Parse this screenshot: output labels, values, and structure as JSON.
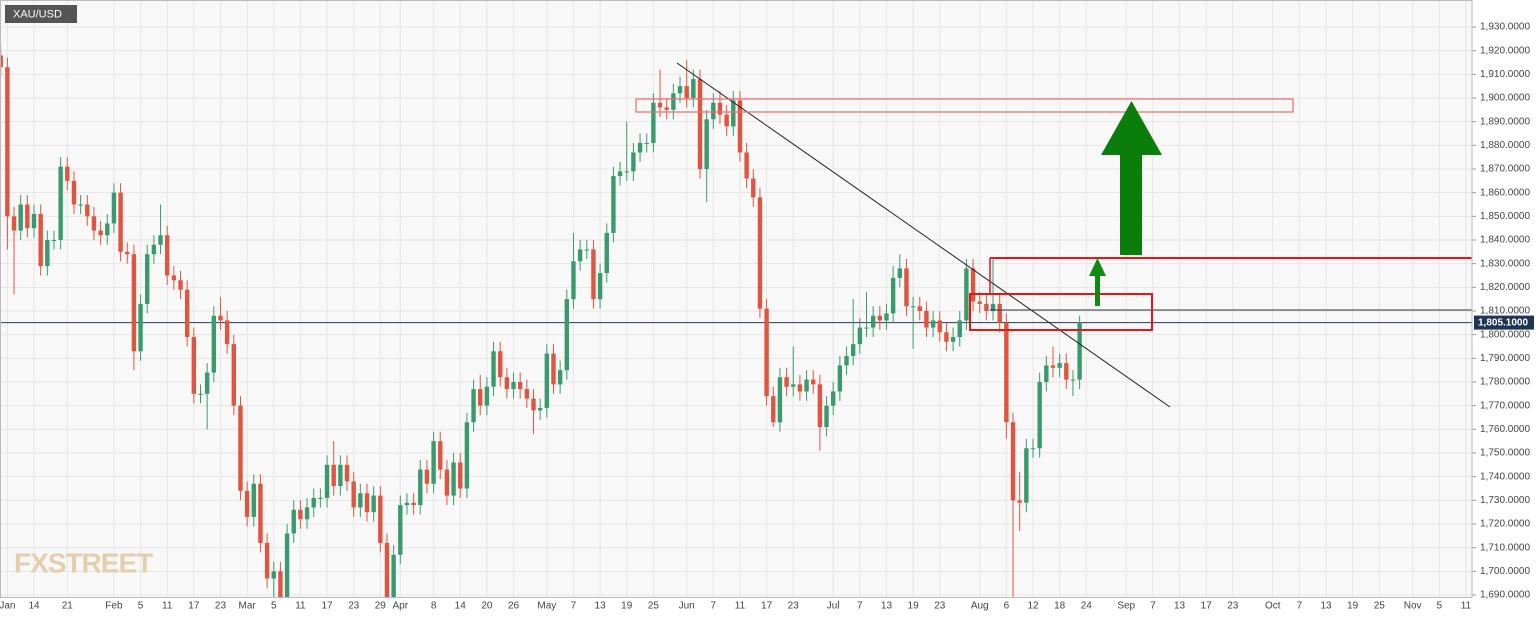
{
  "chart_data": {
    "type": "candlestick",
    "symbol": "XAU/USD",
    "watermark": "FXSTREET",
    "up_color": "#3a9a6e",
    "down_color": "#e0553f",
    "grid": true,
    "ylim": [
      1690,
      1930
    ],
    "yticks": [
      {
        "value": 1690,
        "label": "1,690.0000"
      },
      {
        "value": 1700,
        "label": "1,700.0000"
      },
      {
        "value": 1710,
        "label": "1,710.0000"
      },
      {
        "value": 1720,
        "label": "1,720.0000"
      },
      {
        "value": 1730,
        "label": "1,730.0000"
      },
      {
        "value": 1740,
        "label": "1,740.0000"
      },
      {
        "value": 1750,
        "label": "1,750.0000"
      },
      {
        "value": 1760,
        "label": "1,760.0000"
      },
      {
        "value": 1770,
        "label": "1,770.0000"
      },
      {
        "value": 1780,
        "label": "1,780.0000"
      },
      {
        "value": 1790,
        "label": "1,790.0000"
      },
      {
        "value": 1800,
        "label": "1,800.0000"
      },
      {
        "value": 1810,
        "label": "1,810.0000"
      },
      {
        "value": 1820,
        "label": "1,820.0000"
      },
      {
        "value": 1830,
        "label": "1,830.0000"
      },
      {
        "value": 1840,
        "label": "1,840.0000"
      },
      {
        "value": 1850,
        "label": "1,850.0000"
      },
      {
        "value": 1860,
        "label": "1,860.0000"
      },
      {
        "value": 1870,
        "label": "1,870.0000"
      },
      {
        "value": 1880,
        "label": "1,880.0000"
      },
      {
        "value": 1890,
        "label": "1,890.0000"
      },
      {
        "value": 1900,
        "label": "1,900.0000"
      },
      {
        "value": 1910,
        "label": "1,910.0000"
      },
      {
        "value": 1920,
        "label": "1,920.0000"
      },
      {
        "value": 1930,
        "label": "1,930.0000"
      }
    ],
    "last_price": {
      "value": 1805.1,
      "label": "1,805.1000"
    },
    "categories": [
      null,
      "Jan",
      null,
      null,
      null,
      "14",
      null,
      null,
      null,
      null,
      "21",
      null,
      null,
      null,
      null,
      null,
      null,
      "Feb",
      null,
      null,
      null,
      "5",
      null,
      null,
      null,
      "11",
      null,
      null,
      null,
      "17",
      null,
      null,
      null,
      "23",
      null,
      null,
      null,
      "Mar",
      null,
      null,
      null,
      "5",
      null,
      null,
      null,
      "11",
      null,
      null,
      null,
      "17",
      null,
      null,
      null,
      "23",
      null,
      null,
      null,
      "29",
      null,
      null,
      "Apr",
      null,
      null,
      null,
      null,
      "8",
      null,
      null,
      null,
      "14",
      null,
      null,
      null,
      "20",
      null,
      null,
      null,
      "26",
      null,
      null,
      null,
      null,
      "May",
      null,
      null,
      null,
      "7",
      null,
      null,
      null,
      "13",
      null,
      null,
      null,
      "19",
      null,
      null,
      null,
      "25",
      null,
      null,
      null,
      null,
      "Jun",
      null,
      null,
      null,
      "7",
      null,
      null,
      null,
      "11",
      null,
      null,
      null,
      "17",
      null,
      null,
      null,
      "23",
      null,
      null,
      null,
      null,
      null,
      "Jul",
      null,
      null,
      null,
      "7",
      null,
      null,
      null,
      "13",
      null,
      null,
      null,
      "19",
      null,
      null,
      null,
      "23",
      null,
      null,
      null,
      null,
      null,
      "Aug",
      null,
      null,
      null,
      "6",
      null,
      null,
      null,
      "12",
      null,
      null,
      null,
      "18",
      null,
      null,
      null,
      "24",
      null,
      null,
      null,
      null,
      null,
      "Sep",
      null,
      null,
      null,
      "7",
      null,
      null,
      null,
      "13",
      null,
      null,
      null,
      "17",
      null,
      null,
      null,
      "23",
      null,
      null,
      null,
      null,
      null,
      "Oct",
      null,
      null,
      null,
      "7",
      null,
      null,
      null,
      "13",
      null,
      null,
      null,
      "19",
      null,
      null,
      null,
      "25",
      null,
      null,
      null,
      null,
      "Nov",
      null,
      null,
      null,
      "5",
      null,
      null,
      null,
      "11"
    ],
    "open": [
      1918,
      1913,
      1850,
      1844,
      1855,
      1845,
      1851,
      1829,
      1840,
      1840,
      1871,
      1865,
      1855,
      1855,
      1850,
      1844,
      1842,
      1847,
      1860,
      1835,
      1834,
      1793,
      1813,
      1834,
      1838,
      1842,
      1825,
      1823,
      1819,
      1799,
      1775,
      1775,
      1784,
      1808,
      1806,
      1796,
      1770,
      1734,
      1723,
      1737,
      1712,
      1697,
      1700,
      1683,
      1716,
      1726,
      1722,
      1727,
      1731,
      1731,
      1745,
      1736,
      1745,
      1738,
      1727,
      1733,
      1725,
      1732,
      1712,
      1685,
      1707,
      1728,
      1729,
      1728,
      1743,
      1737,
      1755,
      1743,
      1732,
      1746,
      1735,
      1763,
      1777,
      1770,
      1778,
      1793,
      1782,
      1777,
      1780,
      1777,
      1773,
      1768,
      1769,
      1792,
      1779,
      1785,
      1815,
      1831,
      1836,
      1836,
      1815,
      1826,
      1843,
      1867,
      1869,
      1869,
      1877,
      1881,
      1881,
      1898,
      1896,
      1895,
      1902,
      1905,
      1900,
      1908,
      1870,
      1891,
      1898,
      1893,
      1888,
      1899,
      1877,
      1866,
      1858,
      1811,
      1774,
      1763,
      1782,
      1778,
      1779,
      1776,
      1781,
      1779,
      1761,
      1770,
      1776,
      1787,
      1791,
      1796,
      1803,
      1803,
      1808,
      1806,
      1809,
      1824,
      1828,
      1812,
      1812,
      1810,
      1803,
      1806,
      1801,
      1797,
      1799,
      1806,
      1828,
      1814,
      1813,
      1810,
      1813,
      1805,
      1763,
      1730,
      1729,
      1752,
      1752,
      1780,
      1787,
      1786,
      1788,
      1781,
      1781,
      null,
      null,
      null,
      null,
      null,
      null,
      null,
      null,
      null,
      null,
      null,
      null,
      null,
      null,
      null,
      null,
      null,
      null,
      null,
      null,
      null,
      null,
      null,
      null,
      null,
      null,
      null,
      null,
      null,
      null,
      null,
      null,
      null,
      null,
      null,
      null,
      null,
      null,
      null,
      null,
      null,
      null,
      null,
      null,
      null,
      null,
      null,
      null,
      null,
      null,
      null,
      null,
      null,
      null,
      null,
      null,
      null,
      null
    ],
    "high": [
      1922,
      1917,
      1854,
      1859,
      1859,
      1855,
      1855,
      1844,
      1844,
      1875,
      1875,
      1869,
      1859,
      1859,
      1854,
      1848,
      1851,
      1864,
      1864,
      1839,
      1838,
      1817,
      1838,
      1842,
      1855,
      1846,
      1829,
      1827,
      1823,
      1803,
      1779,
      1788,
      1812,
      1816,
      1810,
      1800,
      1774,
      1738,
      1741,
      1741,
      1716,
      1704,
      1704,
      1720,
      1730,
      1730,
      1731,
      1735,
      1735,
      1749,
      1755,
      1749,
      1749,
      1742,
      1737,
      1737,
      1736,
      1736,
      1716,
      1711,
      1732,
      1733,
      1733,
      1747,
      1747,
      1759,
      1759,
      1747,
      1750,
      1750,
      1767,
      1781,
      1783,
      1782,
      1797,
      1797,
      1786,
      1784,
      1784,
      1781,
      1777,
      1773,
      1796,
      1796,
      1789,
      1819,
      1843,
      1840,
      1840,
      1840,
      1830,
      1847,
      1871,
      1873,
      1890,
      1881,
      1885,
      1885,
      1902,
      1912,
      1900,
      1906,
      1909,
      1916,
      1912,
      1912,
      1895,
      1902,
      1903,
      1897,
      1903,
      1903,
      1881,
      1870,
      1862,
      1815,
      1778,
      1786,
      1786,
      1795,
      1783,
      1785,
      1785,
      1783,
      1774,
      1780,
      1791,
      1795,
      1815,
      1807,
      1818,
      1812,
      1812,
      1813,
      1829,
      1834,
      1832,
      1816,
      1816,
      1814,
      1810,
      1810,
      1805,
      1803,
      1810,
      1832,
      1832,
      1818,
      1817,
      1832,
      1817,
      1809,
      1767,
      1742,
      1756,
      1756,
      1784,
      1791,
      1795,
      1792,
      1792,
      1785,
      1808,
      null,
      null,
      null,
      null,
      null,
      null,
      null,
      null,
      null,
      null,
      null,
      null,
      null,
      null,
      null,
      null,
      null,
      null,
      null,
      null,
      null,
      null,
      null,
      null,
      null,
      null,
      null,
      null,
      null,
      null,
      null,
      null,
      null,
      null,
      null,
      null,
      null,
      null,
      null,
      null,
      null,
      null,
      null,
      null,
      null,
      null,
      null,
      null,
      null,
      null,
      null,
      null,
      null,
      null,
      null,
      null,
      null,
      null
    ],
    "low": [
      1909,
      1836,
      1817,
      1840,
      1841,
      1841,
      1825,
      1825,
      1836,
      1836,
      1861,
      1851,
      1851,
      1846,
      1840,
      1838,
      1838,
      1843,
      1831,
      1830,
      1785,
      1789,
      1809,
      1830,
      1834,
      1821,
      1819,
      1815,
      1795,
      1771,
      1771,
      1760,
      1780,
      1802,
      1792,
      1766,
      1730,
      1719,
      1719,
      1708,
      1693,
      1687,
      1676,
      1679,
      1712,
      1718,
      1718,
      1723,
      1727,
      1727,
      1732,
      1732,
      1734,
      1723,
      1723,
      1721,
      1721,
      1708,
      1677,
      1681,
      1703,
      1724,
      1724,
      1724,
      1733,
      1733,
      1739,
      1728,
      1728,
      1731,
      1731,
      1759,
      1766,
      1766,
      1774,
      1778,
      1773,
      1773,
      1773,
      1769,
      1758,
      1764,
      1765,
      1775,
      1775,
      1781,
      1811,
      1827,
      1832,
      1811,
      1811,
      1822,
      1839,
      1863,
      1865,
      1865,
      1873,
      1877,
      1877,
      1892,
      1891,
      1891,
      1898,
      1896,
      1896,
      1866,
      1856,
      1887,
      1889,
      1884,
      1884,
      1873,
      1862,
      1854,
      1807,
      1770,
      1761,
      1759,
      1774,
      1774,
      1772,
      1772,
      1775,
      1751,
      1757,
      1766,
      1772,
      1783,
      1787,
      1792,
      1799,
      1799,
      1802,
      1802,
      1805,
      1820,
      1808,
      1794,
      1806,
      1799,
      1799,
      1797,
      1793,
      1793,
      1795,
      1802,
      1810,
      1809,
      1806,
      1806,
      1801,
      1756,
      1684,
      1717,
      1725,
      1748,
      1748,
      1776,
      1782,
      1782,
      1777,
      1774,
      1777,
      null,
      null,
      null,
      null,
      null,
      null,
      null,
      null,
      null,
      null,
      null,
      null,
      null,
      null,
      null,
      null,
      null,
      null,
      null,
      null,
      null,
      null,
      null,
      null,
      null,
      null,
      null,
      null,
      null,
      null,
      null,
      null,
      null,
      null,
      null,
      null,
      null,
      null,
      null,
      null,
      null,
      null,
      null,
      null,
      null,
      null,
      null,
      null,
      null,
      null,
      null,
      null,
      null,
      null,
      null,
      null,
      null,
      null
    ],
    "close": [
      1913,
      1850,
      1844,
      1855,
      1845,
      1851,
      1829,
      1840,
      1840,
      1871,
      1865,
      1855,
      1855,
      1850,
      1844,
      1842,
      1847,
      1860,
      1835,
      1834,
      1793,
      1813,
      1834,
      1838,
      1842,
      1825,
      1823,
      1819,
      1799,
      1775,
      1775,
      1784,
      1808,
      1806,
      1796,
      1770,
      1734,
      1723,
      1737,
      1712,
      1697,
      1700,
      1683,
      1716,
      1726,
      1722,
      1727,
      1731,
      1731,
      1745,
      1736,
      1745,
      1738,
      1727,
      1733,
      1725,
      1732,
      1712,
      1685,
      1707,
      1728,
      1729,
      1728,
      1743,
      1737,
      1755,
      1743,
      1732,
      1746,
      1735,
      1763,
      1777,
      1770,
      1778,
      1793,
      1782,
      1777,
      1780,
      1777,
      1773,
      1768,
      1769,
      1792,
      1779,
      1785,
      1815,
      1831,
      1836,
      1836,
      1815,
      1826,
      1843,
      1867,
      1869,
      1869,
      1877,
      1881,
      1881,
      1898,
      1896,
      1895,
      1902,
      1905,
      1900,
      1908,
      1870,
      1891,
      1898,
      1893,
      1888,
      1899,
      1877,
      1866,
      1858,
      1811,
      1774,
      1763,
      1782,
      1778,
      1779,
      1776,
      1781,
      1779,
      1761,
      1770,
      1776,
      1787,
      1791,
      1796,
      1803,
      1803,
      1808,
      1806,
      1809,
      1824,
      1828,
      1812,
      1812,
      1810,
      1803,
      1806,
      1801,
      1797,
      1799,
      1806,
      1828,
      1814,
      1813,
      1810,
      1813,
      1805,
      1763,
      1730,
      1729,
      1752,
      1752,
      1780,
      1787,
      1786,
      1788,
      1781,
      1781,
      1805.1,
      null,
      null,
      null,
      null,
      null,
      null,
      null,
      null,
      null,
      null,
      null,
      null,
      null,
      null,
      null,
      null,
      null,
      null,
      null,
      null,
      null,
      null,
      null,
      null,
      null,
      null,
      null,
      null,
      null,
      null,
      null,
      null,
      null,
      null,
      null,
      null,
      null,
      null,
      null,
      null,
      null,
      null,
      null,
      null,
      null,
      null,
      null,
      null,
      null,
      null,
      null,
      null,
      null,
      null,
      null,
      null,
      null,
      null
    ]
  }
}
